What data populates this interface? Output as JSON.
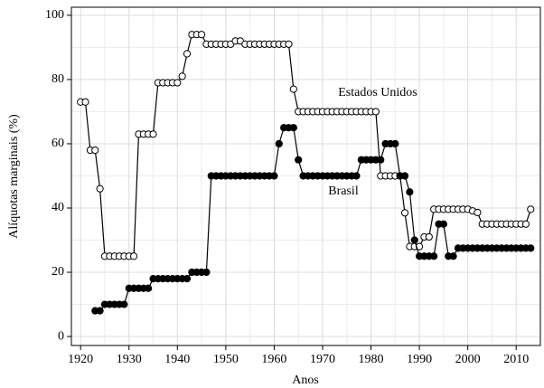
{
  "chart_data": {
    "type": "line",
    "x_label": "Anos",
    "y_label": "Alíquotas marginais (%)",
    "xlim": [
      1918.1,
      2015
    ],
    "ylim": [
      -2.8,
      102.5
    ],
    "xticks": [
      1920,
      1930,
      1940,
      1950,
      1960,
      1970,
      1980,
      1990,
      2000,
      2010
    ],
    "yticks": [
      0,
      20,
      40,
      60,
      80,
      100
    ],
    "grid": true,
    "series": [
      {
        "name": "Estados Unidos",
        "color": "#000000",
        "fill": "#ffffff",
        "x": [
          1920,
          1921,
          1922,
          1923,
          1924,
          1925,
          1926,
          1927,
          1928,
          1929,
          1930,
          1931,
          1932,
          1933,
          1934,
          1935,
          1936,
          1937,
          1938,
          1939,
          1940,
          1941,
          1942,
          1943,
          1944,
          1945,
          1946,
          1947,
          1948,
          1949,
          1950,
          1951,
          1952,
          1953,
          1954,
          1955,
          1956,
          1957,
          1958,
          1959,
          1960,
          1961,
          1962,
          1963,
          1964,
          1965,
          1966,
          1967,
          1968,
          1969,
          1970,
          1971,
          1972,
          1973,
          1974,
          1975,
          1976,
          1977,
          1978,
          1979,
          1980,
          1981,
          1982,
          1983,
          1984,
          1985,
          1986,
          1987,
          1988,
          1989,
          1990,
          1991,
          1992,
          1993,
          1994,
          1995,
          1996,
          1997,
          1998,
          1999,
          2000,
          2001,
          2002,
          2003,
          2004,
          2005,
          2006,
          2007,
          2008,
          2009,
          2010,
          2011,
          2012,
          2013
        ],
        "values": [
          73,
          73,
          58,
          58,
          46,
          25,
          25,
          25,
          25,
          25,
          25,
          25,
          63,
          63,
          63,
          63,
          79,
          79,
          79,
          79,
          79,
          81,
          88,
          94,
          94,
          94,
          91,
          91,
          91,
          91,
          91,
          91,
          92,
          92,
          91,
          91,
          91,
          91,
          91,
          91,
          91,
          91,
          91,
          91,
          77,
          70,
          70,
          70,
          70,
          70,
          70,
          70,
          70,
          70,
          70,
          70,
          70,
          70,
          70,
          70,
          70,
          70,
          50,
          50,
          50,
          50,
          50,
          38.5,
          28,
          28,
          28,
          31,
          31,
          39.6,
          39.6,
          39.6,
          39.6,
          39.6,
          39.6,
          39.6,
          39.6,
          39.1,
          38.6,
          35,
          35,
          35,
          35,
          35,
          35,
          35,
          35,
          35,
          35,
          39.6
        ]
      },
      {
        "name": "Brasil",
        "color": "#000000",
        "fill": "#000000",
        "x": [
          1923,
          1924,
          1925,
          1926,
          1927,
          1928,
          1929,
          1930,
          1931,
          1932,
          1933,
          1934,
          1935,
          1936,
          1937,
          1938,
          1939,
          1940,
          1941,
          1942,
          1943,
          1944,
          1945,
          1946,
          1947,
          1948,
          1949,
          1950,
          1951,
          1952,
          1953,
          1954,
          1955,
          1956,
          1957,
          1958,
          1959,
          1960,
          1961,
          1962,
          1963,
          1964,
          1965,
          1966,
          1967,
          1968,
          1969,
          1970,
          1971,
          1972,
          1973,
          1974,
          1975,
          1976,
          1977,
          1978,
          1979,
          1980,
          1981,
          1982,
          1983,
          1984,
          1985,
          1986,
          1987,
          1988,
          1989,
          1990,
          1991,
          1992,
          1993,
          1994,
          1995,
          1996,
          1997,
          1998,
          1999,
          2000,
          2001,
          2002,
          2003,
          2004,
          2005,
          2006,
          2007,
          2008,
          2009,
          2010,
          2011,
          2012,
          2013
        ],
        "values": [
          8,
          8,
          10,
          10,
          10,
          10,
          10,
          15,
          15,
          15,
          15,
          15,
          18,
          18,
          18,
          18,
          18,
          18,
          18,
          18,
          20,
          20,
          20,
          20,
          50,
          50,
          50,
          50,
          50,
          50,
          50,
          50,
          50,
          50,
          50,
          50,
          50,
          50,
          60,
          65,
          65,
          65,
          55,
          50,
          50,
          50,
          50,
          50,
          50,
          50,
          50,
          50,
          50,
          50,
          50,
          55,
          55,
          55,
          55,
          55,
          60,
          60,
          60,
          50,
          50,
          45,
          30,
          25,
          25,
          25,
          25,
          35,
          35,
          25,
          25,
          27.5,
          27.5,
          27.5,
          27.5,
          27.5,
          27.5,
          27.5,
          27.5,
          27.5,
          27.5,
          27.5,
          27.5,
          27.5,
          27.5,
          27.5,
          27.5
        ]
      }
    ]
  }
}
